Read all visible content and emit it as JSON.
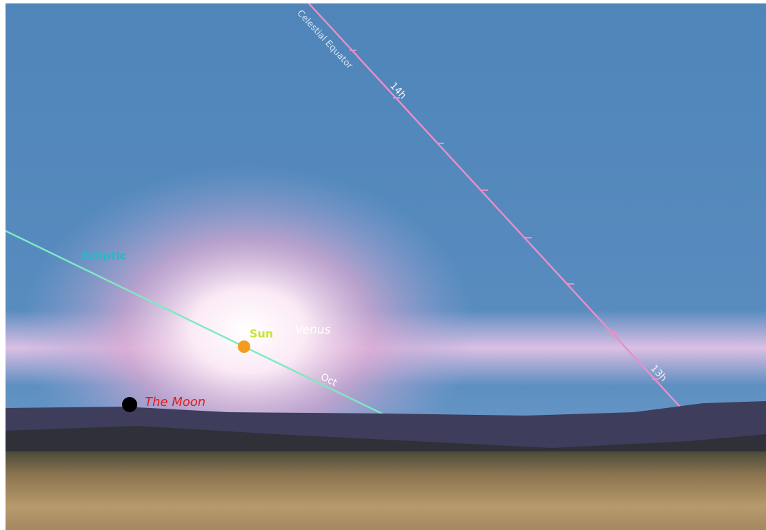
{
  "labels": {
    "celestial_equator": "Celestial Equator",
    "hour_14": "14h",
    "hour_13": "13h",
    "ecliptic": "Ecliptic",
    "month": "Oct",
    "sun": "Sun",
    "venus": "Venus",
    "moon": "The Moon"
  }
}
